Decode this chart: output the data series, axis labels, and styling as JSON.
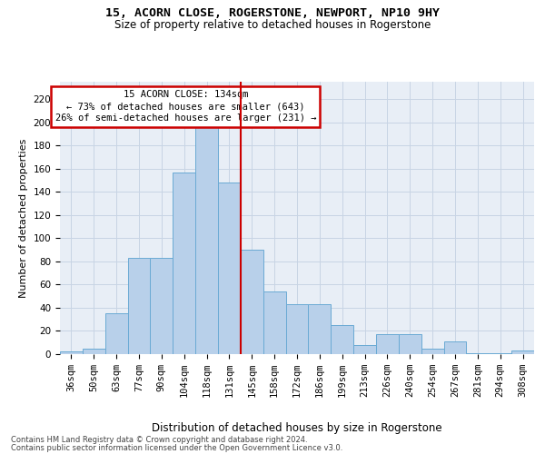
{
  "title1": "15, ACORN CLOSE, ROGERSTONE, NEWPORT, NP10 9HY",
  "title2": "Size of property relative to detached houses in Rogerstone",
  "xlabel": "Distribution of detached houses by size in Rogerstone",
  "ylabel": "Number of detached properties",
  "footnote1": "Contains HM Land Registry data © Crown copyright and database right 2024.",
  "footnote2": "Contains public sector information licensed under the Open Government Licence v3.0.",
  "bar_labels": [
    "36sqm",
    "50sqm",
    "63sqm",
    "77sqm",
    "90sqm",
    "104sqm",
    "118sqm",
    "131sqm",
    "145sqm",
    "158sqm",
    "172sqm",
    "186sqm",
    "199sqm",
    "213sqm",
    "226sqm",
    "240sqm",
    "254sqm",
    "267sqm",
    "281sqm",
    "294sqm",
    "308sqm"
  ],
  "bar_values": [
    2,
    5,
    35,
    83,
    83,
    157,
    200,
    148,
    90,
    54,
    43,
    43,
    25,
    8,
    17,
    17,
    5,
    11,
    1,
    1,
    3
  ],
  "bar_color": "#b8d0ea",
  "bar_edgecolor": "#6aaad4",
  "grid_color": "#c8d4e4",
  "bg_color": "#e8eef6",
  "vline_color": "#cc0000",
  "annotation_box_color": "#cc0000",
  "ylim": [
    0,
    235
  ],
  "yticks": [
    0,
    20,
    40,
    60,
    80,
    100,
    120,
    140,
    160,
    180,
    200,
    220
  ],
  "title1_fontsize": 9.5,
  "title2_fontsize": 8.5,
  "xlabel_fontsize": 8.5,
  "ylabel_fontsize": 8,
  "tick_fontsize": 7.5,
  "annotation_fontsize": 7.5,
  "footnote_fontsize": 6.0
}
